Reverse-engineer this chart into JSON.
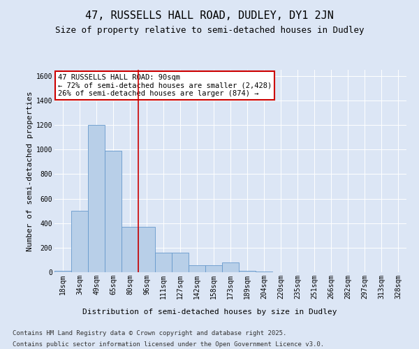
{
  "title": "47, RUSSELLS HALL ROAD, DUDLEY, DY1 2JN",
  "subtitle": "Size of property relative to semi-detached houses in Dudley",
  "xlabel": "Distribution of semi-detached houses by size in Dudley",
  "ylabel": "Number of semi-detached properties",
  "bins": [
    "18sqm",
    "34sqm",
    "49sqm",
    "65sqm",
    "80sqm",
    "96sqm",
    "111sqm",
    "127sqm",
    "142sqm",
    "158sqm",
    "173sqm",
    "189sqm",
    "204sqm",
    "220sqm",
    "235sqm",
    "251sqm",
    "266sqm",
    "282sqm",
    "297sqm",
    "313sqm",
    "328sqm"
  ],
  "values": [
    10,
    500,
    1200,
    990,
    370,
    370,
    160,
    160,
    55,
    55,
    80,
    10,
    5,
    0,
    0,
    0,
    0,
    0,
    0,
    0,
    0
  ],
  "bar_color": "#b8cfe8",
  "bar_edge_color": "#6699cc",
  "red_line_x": 4.5,
  "annotation_line1": "47 RUSSELLS HALL ROAD: 90sqm",
  "annotation_line2": "← 72% of semi-detached houses are smaller (2,428)",
  "annotation_line3": "26% of semi-detached houses are larger (874) →",
  "annotation_box_color": "#ffffff",
  "annotation_box_edge": "#cc0000",
  "ylim": [
    0,
    1650
  ],
  "yticks": [
    0,
    200,
    400,
    600,
    800,
    1000,
    1200,
    1400,
    1600
  ],
  "background_color": "#dce6f5",
  "plot_bg_color": "#dce6f5",
  "footer_line1": "Contains HM Land Registry data © Crown copyright and database right 2025.",
  "footer_line2": "Contains public sector information licensed under the Open Government Licence v3.0.",
  "title_fontsize": 11,
  "subtitle_fontsize": 9,
  "tick_fontsize": 7,
  "ylabel_fontsize": 8,
  "xlabel_fontsize": 8,
  "annotation_fontsize": 7.5,
  "footer_fontsize": 6.5
}
